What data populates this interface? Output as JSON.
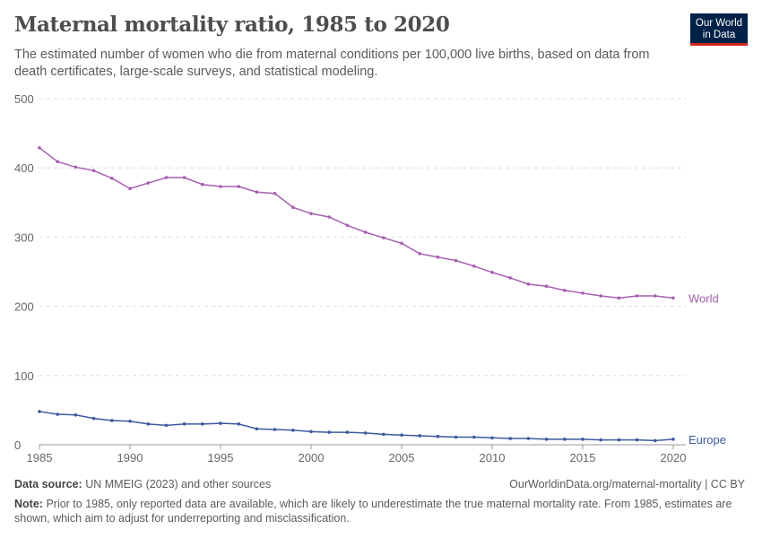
{
  "header": {
    "title": "Maternal mortality ratio, 1985 to 2020",
    "subtitle": "The estimated number of women who die from maternal conditions per 100,000 live births, based on data from death certificates, large-scale surveys, and statistical modeling.",
    "logo": "Our World in Data"
  },
  "footer": {
    "source_label": "Data source:",
    "source": "UN MMEIG (2023) and other sources",
    "url": "OurWorldinData.org/maternal-mortality | CC BY",
    "note_label": "Note:",
    "note": "Prior to 1985, only reported data are available, which are likely to underestimate the true maternal mortality rate. From 1985, estimates are shown, which aim to adjust for underreporting and misclassification."
  },
  "chart_data": {
    "type": "line",
    "title": "Maternal mortality ratio, 1985 to 2020",
    "xlim": [
      1985,
      2020
    ],
    "ylim": [
      0,
      500
    ],
    "xticks": [
      1985,
      1990,
      1995,
      2000,
      2005,
      2010,
      2015,
      2020
    ],
    "yticks": [
      0,
      100,
      200,
      300,
      400,
      500
    ],
    "grid": "horizontal dashed",
    "legend": "line-end labels",
    "x": [
      1985,
      1986,
      1987,
      1988,
      1989,
      1990,
      1991,
      1992,
      1993,
      1994,
      1995,
      1996,
      1997,
      1998,
      1999,
      2000,
      2001,
      2002,
      2003,
      2004,
      2005,
      2006,
      2007,
      2008,
      2009,
      2010,
      2011,
      2012,
      2013,
      2014,
      2015,
      2016,
      2017,
      2018,
      2019,
      2020
    ],
    "series": [
      {
        "name": "World",
        "color": "#a65fb0",
        "values": [
          429,
          409,
          401,
          396,
          385,
          370,
          378,
          386,
          386,
          376,
          373,
          373,
          365,
          363,
          343,
          334,
          329,
          317,
          307,
          299,
          291,
          276,
          271,
          266,
          258,
          249,
          241,
          232,
          229,
          223,
          219,
          215,
          212,
          215,
          215,
          212
        ]
      },
      {
        "name": "Europe",
        "color": "#3d5a9e",
        "values": [
          48,
          44,
          43,
          38,
          35,
          34,
          30,
          28,
          30,
          30,
          31,
          30,
          23,
          22,
          21,
          19,
          18,
          18,
          17,
          15,
          14,
          13,
          12,
          11,
          11,
          10,
          9,
          9,
          8,
          8,
          8,
          7,
          7,
          7,
          6,
          8
        ]
      }
    ]
  }
}
